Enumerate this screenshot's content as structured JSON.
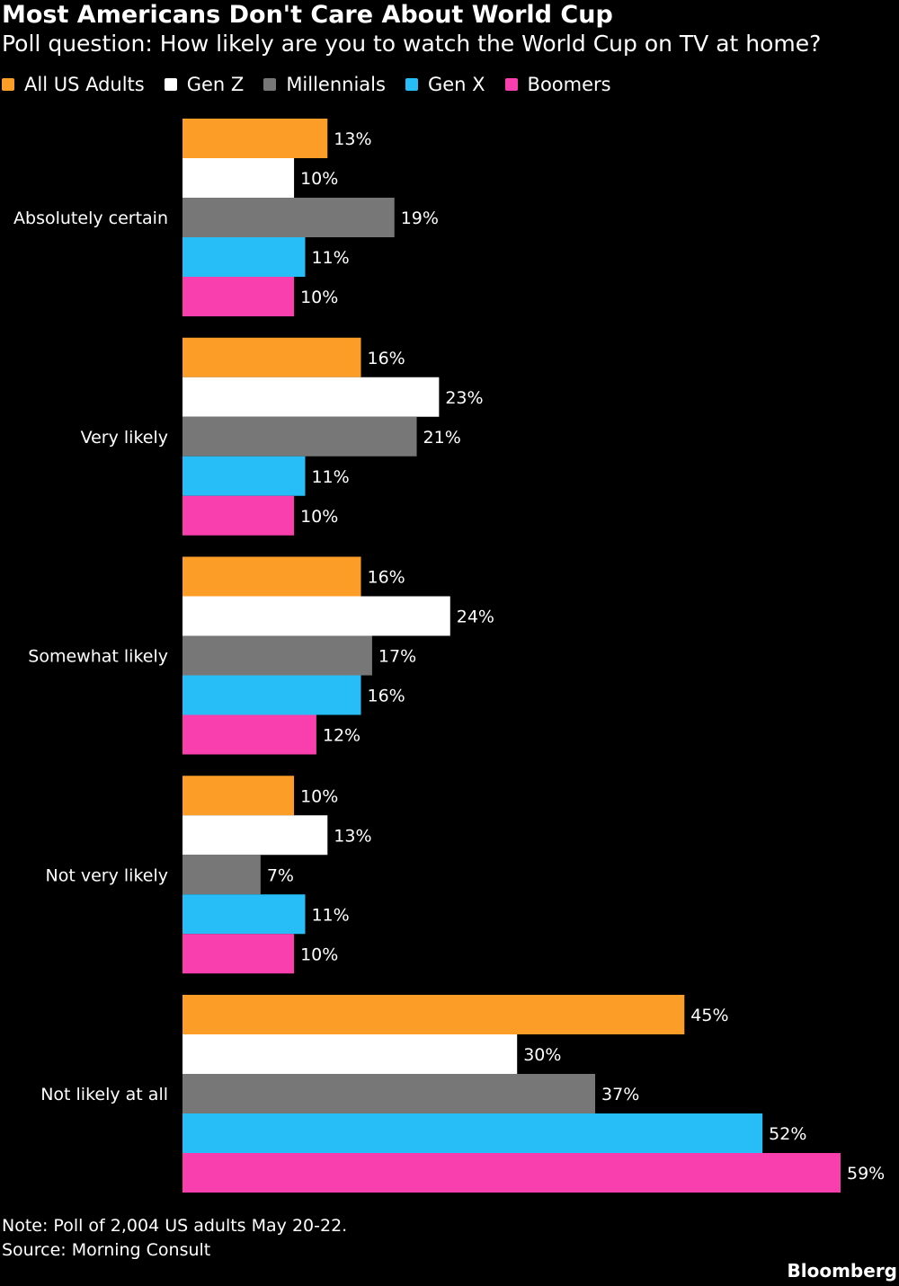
{
  "header": {
    "title": "Most Americans Don't Care About World Cup",
    "subtitle": "Poll question: How likely are you to watch the World Cup on TV at home?"
  },
  "legend": [
    {
      "label": "All US Adults",
      "color": "#fb9d27"
    },
    {
      "label": "Gen Z",
      "color": "#ffffff"
    },
    {
      "label": "Millennials",
      "color": "#777777"
    },
    {
      "label": "Gen X",
      "color": "#27bdf6"
    },
    {
      "label": "Boomers",
      "color": "#f93fad"
    }
  ],
  "footer": {
    "note": "Note: Poll of 2,004 US adults May 20-22.",
    "source": "Source: Morning Consult",
    "brand": "Bloomberg"
  },
  "chart_data": {
    "type": "bar",
    "orientation": "horizontal",
    "grid": false,
    "legend_position": "top-left",
    "value_suffix": "%",
    "xlim": [
      0,
      60
    ],
    "categories": [
      "Absolutely certain",
      "Very likely",
      "Somewhat likely",
      "Not very likely",
      "Not likely at all"
    ],
    "series": [
      {
        "name": "All US Adults",
        "color": "#fb9d27",
        "values": [
          13,
          16,
          16,
          10,
          45
        ]
      },
      {
        "name": "Gen Z",
        "color": "#ffffff",
        "values": [
          10,
          23,
          24,
          13,
          30
        ]
      },
      {
        "name": "Millennials",
        "color": "#777777",
        "values": [
          19,
          21,
          17,
          7,
          37
        ]
      },
      {
        "name": "Gen X",
        "color": "#27bdf6",
        "values": [
          11,
          11,
          16,
          11,
          52
        ]
      },
      {
        "name": "Boomers",
        "color": "#f93fad",
        "values": [
          10,
          10,
          12,
          10,
          59
        ]
      }
    ]
  }
}
